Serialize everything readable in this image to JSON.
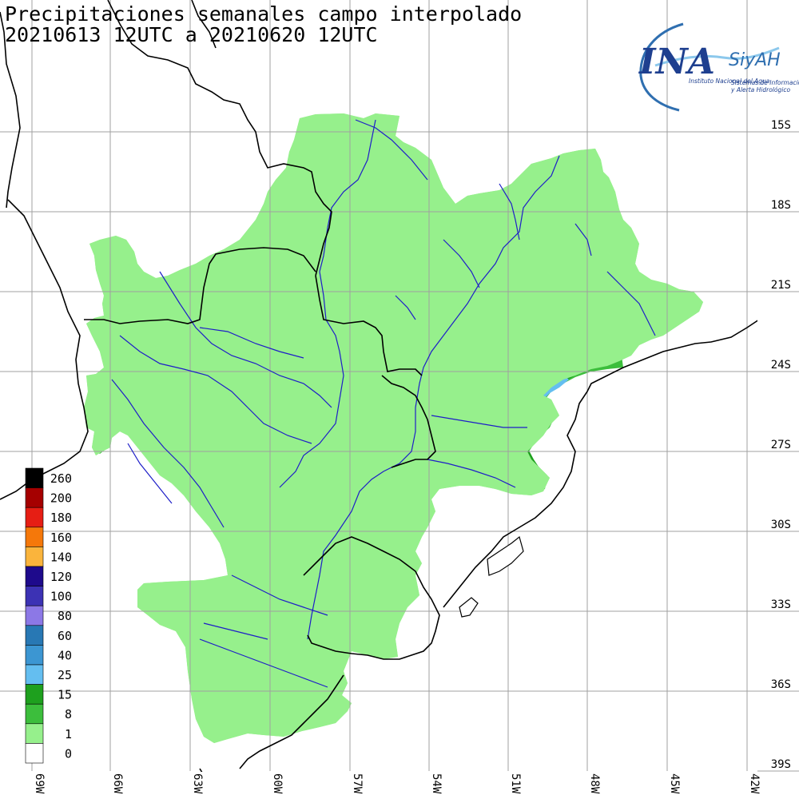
{
  "title": {
    "line1": "Precipitaciones semanales campo interpolado",
    "line2": "20210613 12UTC a 20210620 12UTC"
  },
  "logo": {
    "main": "INA",
    "side": "SiyAH",
    "sub_left": "Instituto Nacional del Agua",
    "sub_right_1": "Sistemas de Información",
    "sub_right_2": "y Alerta Hidrológico"
  },
  "lat_labels": [
    "15S",
    "18S",
    "21S",
    "24S",
    "27S",
    "30S",
    "33S",
    "36S",
    "39S"
  ],
  "lon_labels": [
    "69W",
    "66W",
    "63W",
    "60W",
    "57W",
    "54W",
    "51W",
    "48W",
    "45W",
    "42W"
  ],
  "legend": [
    {
      "label": "260",
      "color": "#000000"
    },
    {
      "label": "200",
      "color": "#a50000"
    },
    {
      "label": "180",
      "color": "#e61e14"
    },
    {
      "label": "160",
      "color": "#f5780a"
    },
    {
      "label": "140",
      "color": "#fab43c"
    },
    {
      "label": "120",
      "color": "#1e0a8c"
    },
    {
      "label": "100",
      "color": "#3c32b4"
    },
    {
      "label": "80",
      "color": "#8c78e6"
    },
    {
      "label": "60",
      "color": "#2878b4"
    },
    {
      "label": "40",
      "color": "#3c96d2"
    },
    {
      "label": "25",
      "color": "#64bef0"
    },
    {
      "label": "15",
      "color": "#1ea01e"
    },
    {
      "label": "8",
      "color": "#3cbe3c"
    },
    {
      "label": "1",
      "color": "#96f08c"
    },
    {
      "label": "0",
      "color": "#ffffff"
    }
  ],
  "colors": {
    "basin_outline": "#e61e14",
    "country_borders": "#000000",
    "rivers": "#1e1ec8",
    "grid": "#a0a0a0"
  }
}
